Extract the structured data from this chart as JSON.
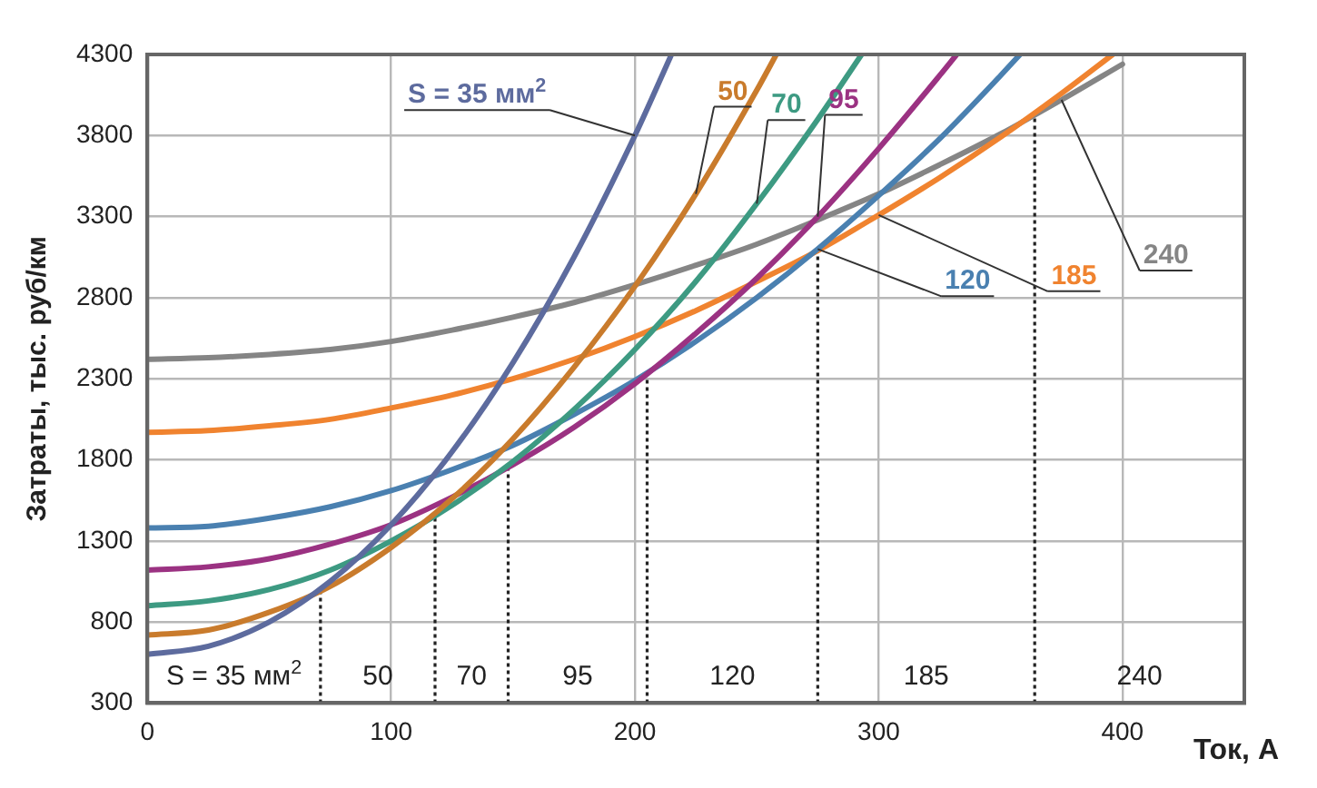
{
  "chart_data": {
    "type": "line",
    "xlabel": "Ток, А",
    "ylabel": "Затраты, тыс. руб/км",
    "xlim": [
      0,
      450
    ],
    "xticks": [
      0,
      100,
      200,
      300,
      400
    ],
    "ylim": [
      300,
      4300
    ],
    "yticks": [
      300,
      800,
      1300,
      1800,
      2300,
      2800,
      3300,
      3800,
      4300
    ],
    "grid": true,
    "legend": false,
    "marker": "none",
    "line_style": "solid",
    "series": [
      {
        "name": "S = 35 мм$^{2}$",
        "color": "#5d6b9e",
        "x": [
          0,
          25,
          50,
          75,
          100,
          125,
          150,
          175,
          200,
          215
        ],
        "values": [
          600,
          650,
          800,
          1050,
          1400,
          1850,
          2400,
          3050,
          3800,
          4300
        ]
      },
      {
        "name": "50",
        "color": "#c97b2c",
        "x": [
          0,
          25,
          50,
          75,
          100,
          125,
          150,
          175,
          200,
          225,
          250,
          258
        ],
        "values": [
          720,
          750,
          860,
          1020,
          1260,
          1560,
          1930,
          2370,
          2870,
          3440,
          4080,
          4300
        ]
      },
      {
        "name": "70",
        "color": "#3d9a82",
        "x": [
          0,
          25,
          50,
          75,
          100,
          125,
          150,
          175,
          200,
          225,
          250,
          275,
          293
        ],
        "values": [
          900,
          930,
          1000,
          1120,
          1300,
          1520,
          1790,
          2110,
          2480,
          2900,
          3380,
          3900,
          4300
        ]
      },
      {
        "name": "95",
        "color": "#9b3282",
        "x": [
          0,
          25,
          50,
          75,
          100,
          125,
          150,
          175,
          200,
          225,
          250,
          275,
          300,
          325,
          332
        ],
        "values": [
          1120,
          1140,
          1190,
          1280,
          1400,
          1570,
          1770,
          2000,
          2270,
          2580,
          2920,
          3300,
          3720,
          4170,
          4300
        ]
      },
      {
        "name": "120",
        "color": "#4a80b0",
        "x": [
          0,
          25,
          50,
          75,
          100,
          125,
          150,
          175,
          200,
          225,
          250,
          275,
          300,
          325,
          350,
          358
        ],
        "values": [
          1380,
          1390,
          1440,
          1510,
          1610,
          1740,
          1890,
          2080,
          2290,
          2530,
          2800,
          3100,
          3430,
          3780,
          4170,
          4300
        ]
      },
      {
        "name": "185",
        "color": "#f0832f",
        "x": [
          0,
          25,
          50,
          75,
          100,
          125,
          150,
          175,
          200,
          225,
          250,
          275,
          300,
          325,
          350,
          375,
          396
        ],
        "values": [
          1970,
          1980,
          2010,
          2050,
          2120,
          2200,
          2300,
          2420,
          2560,
          2720,
          2900,
          3090,
          3310,
          3540,
          3790,
          4060,
          4300
        ]
      },
      {
        "name": "240",
        "color": "#858585",
        "x": [
          0,
          25,
          50,
          75,
          100,
          125,
          150,
          175,
          200,
          225,
          250,
          275,
          300,
          325,
          350,
          375,
          400
        ],
        "values": [
          2420,
          2430,
          2450,
          2480,
          2530,
          2600,
          2680,
          2770,
          2880,
          3000,
          3130,
          3280,
          3440,
          3620,
          3810,
          4020,
          4240
        ]
      }
    ],
    "ref_lines": [
      {
        "axis": "x",
        "value": 71,
        "line_style": "dotted",
        "color": "#222222"
      },
      {
        "axis": "x",
        "value": 118,
        "line_style": "dotted",
        "color": "#222222"
      },
      {
        "axis": "x",
        "value": 148,
        "line_style": "dotted",
        "color": "#222222"
      },
      {
        "axis": "x",
        "value": 205,
        "line_style": "dotted",
        "color": "#222222"
      },
      {
        "axis": "x",
        "value": 275,
        "line_style": "dotted",
        "color": "#222222"
      },
      {
        "axis": "x",
        "value": 364,
        "line_style": "dotted",
        "color": "#222222"
      }
    ],
    "annotations": [
      "S = 35 мм$^{2}$",
      "50",
      "70",
      "95",
      "120",
      "185",
      "240"
    ]
  }
}
